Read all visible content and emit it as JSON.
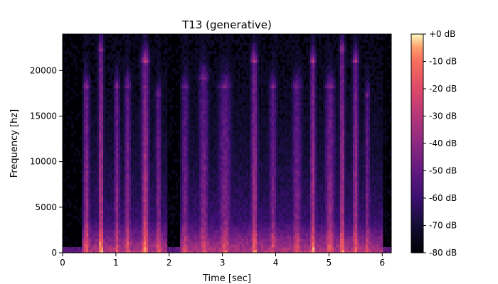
{
  "chart_data": {
    "type": "heatmap",
    "title": "T13 (generative)",
    "xlabel": "Time [sec]",
    "ylabel": "Frequency [hz]",
    "xlim": [
      0,
      6.17
    ],
    "ylim": [
      0,
      24000
    ],
    "x_ticks": [
      0,
      1,
      2,
      3,
      4,
      5,
      6
    ],
    "x_tick_labels": [
      "0",
      "1",
      "2",
      "3",
      "4",
      "5",
      "6"
    ],
    "y_ticks": [
      0,
      5000,
      10000,
      15000,
      20000
    ],
    "y_tick_labels": [
      "0",
      "5000",
      "10000",
      "15000",
      "20000"
    ],
    "colormap": "magma",
    "colorbar": {
      "range_db": [
        -80,
        0
      ],
      "ticks": [
        0,
        -10,
        -20,
        -30,
        -40,
        -50,
        -60,
        -70,
        -80
      ],
      "tick_labels": [
        "+0 dB",
        "-10 dB",
        "-20 dB",
        "-30 dB",
        "-40 dB",
        "-50 dB",
        "-60 dB",
        "-70 dB",
        "-80 dB"
      ]
    },
    "energy_bursts": [
      {
        "t": 0.45,
        "w": 0.1,
        "fmax": 18000,
        "level": 0.55
      },
      {
        "t": 0.72,
        "w": 0.08,
        "fmax": 22000,
        "level": 0.65
      },
      {
        "t": 1.02,
        "w": 0.09,
        "fmax": 18000,
        "level": 0.5
      },
      {
        "t": 1.22,
        "w": 0.1,
        "fmax": 18000,
        "level": 0.5
      },
      {
        "t": 1.55,
        "w": 0.12,
        "fmax": 21000,
        "level": 0.62
      },
      {
        "t": 1.8,
        "w": 0.09,
        "fmax": 17000,
        "level": 0.48
      },
      {
        "t": 2.3,
        "w": 0.12,
        "fmax": 18000,
        "level": 0.42
      },
      {
        "t": 2.65,
        "w": 0.15,
        "fmax": 19000,
        "level": 0.45
      },
      {
        "t": 3.05,
        "w": 0.2,
        "fmax": 18000,
        "level": 0.45
      },
      {
        "t": 3.6,
        "w": 0.1,
        "fmax": 21000,
        "level": 0.58
      },
      {
        "t": 3.95,
        "w": 0.12,
        "fmax": 18000,
        "level": 0.45
      },
      {
        "t": 4.4,
        "w": 0.15,
        "fmax": 18000,
        "level": 0.45
      },
      {
        "t": 4.7,
        "w": 0.08,
        "fmax": 21000,
        "level": 0.6
      },
      {
        "t": 5.02,
        "w": 0.15,
        "fmax": 18000,
        "level": 0.5
      },
      {
        "t": 5.25,
        "w": 0.08,
        "fmax": 22000,
        "level": 0.62
      },
      {
        "t": 5.5,
        "w": 0.1,
        "fmax": 21000,
        "level": 0.55
      },
      {
        "t": 5.72,
        "w": 0.08,
        "fmax": 17000,
        "level": 0.45
      }
    ],
    "silent_gaps_sec": [
      [
        0,
        0.35
      ],
      [
        1.95,
        2.2
      ],
      [
        6.0,
        6.17
      ]
    ]
  }
}
